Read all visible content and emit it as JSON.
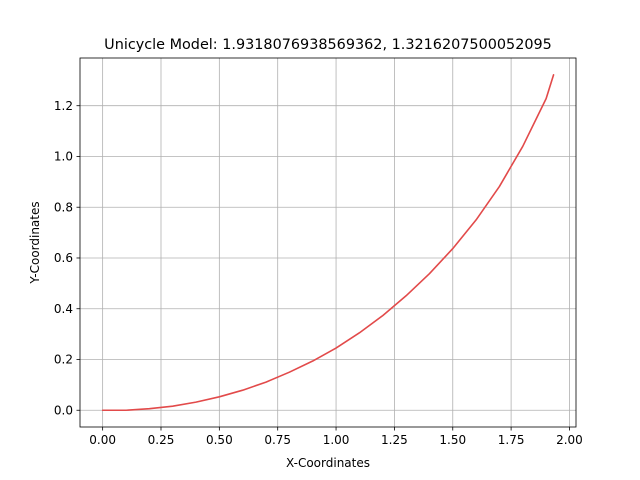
{
  "chart_data": {
    "type": "line",
    "title": "Unicycle Model: 1.9318076938569362, 1.3216207500052095",
    "xlabel": "X-Coordinates",
    "ylabel": "Y-Coordinates",
    "xlim": [
      -0.097,
      2.028
    ],
    "ylim": [
      -0.066,
      1.388
    ],
    "x_ticks": [
      0.0,
      0.25,
      0.5,
      0.75,
      1.0,
      1.25,
      1.5,
      1.75,
      2.0
    ],
    "x_tick_labels": [
      "0.00",
      "0.25",
      "0.50",
      "0.75",
      "1.00",
      "1.25",
      "1.50",
      "1.75",
      "2.00"
    ],
    "y_ticks": [
      0.0,
      0.2,
      0.4,
      0.6,
      0.8,
      1.0,
      1.2
    ],
    "y_tick_labels": [
      "0.0",
      "0.2",
      "0.4",
      "0.6",
      "0.8",
      "1.0",
      "1.2"
    ],
    "grid": true,
    "series": [
      {
        "color": "#e24a4a",
        "x": [
          0.0,
          0.1,
          0.2,
          0.3,
          0.4,
          0.5,
          0.6,
          0.7,
          0.8,
          0.9,
          1.0,
          1.1,
          1.2,
          1.3,
          1.4,
          1.5,
          1.6,
          1.7,
          1.8,
          1.9,
          1.9318
        ],
        "y": [
          0.0,
          0.0,
          0.006,
          0.016,
          0.032,
          0.053,
          0.079,
          0.111,
          0.15,
          0.194,
          0.245,
          0.305,
          0.373,
          0.451,
          0.538,
          0.637,
          0.75,
          0.882,
          1.04,
          1.228,
          1.3216
        ]
      }
    ]
  }
}
